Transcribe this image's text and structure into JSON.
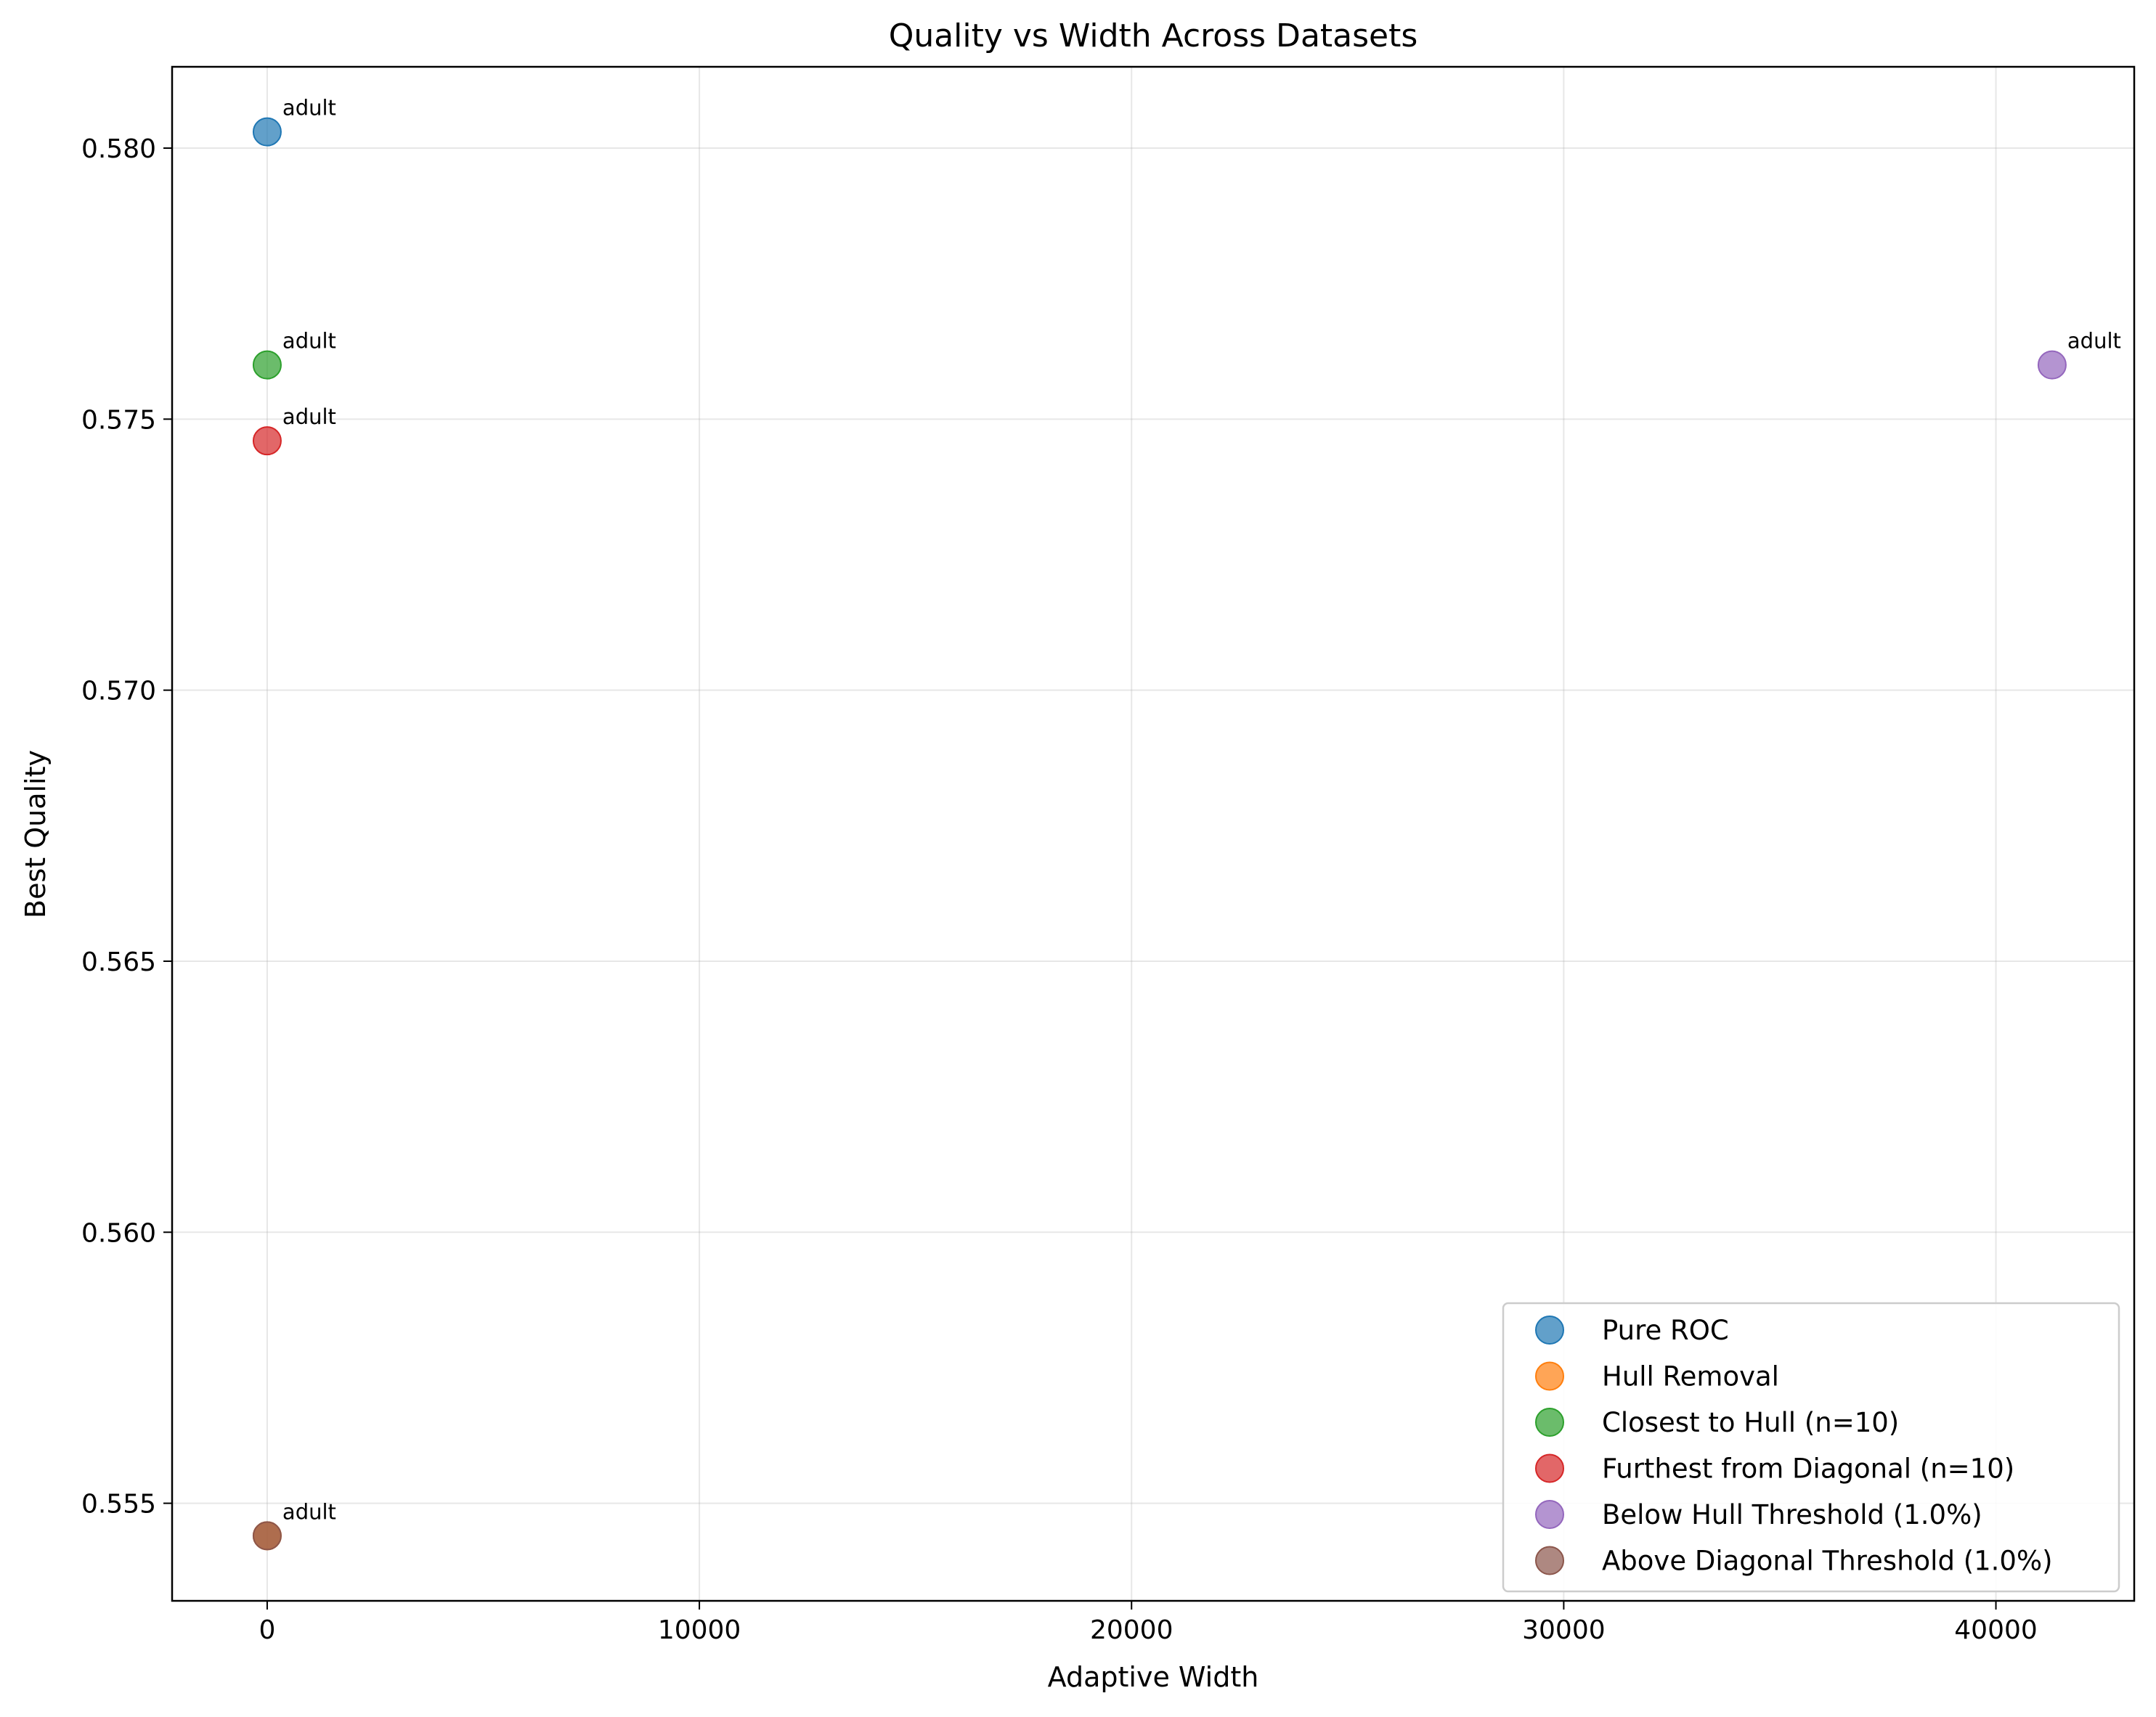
{
  "chart_data": {
    "type": "scatter",
    "title": "Quality vs Width Across Datasets",
    "xlabel": "Adaptive Width",
    "ylabel": "Best Quality",
    "xlim": [
      -2200,
      43200
    ],
    "ylim": [
      0.5532,
      0.5815
    ],
    "xticks": [
      0,
      10000,
      20000,
      30000,
      40000
    ],
    "xtick_labels": [
      "0",
      "10000",
      "20000",
      "30000",
      "40000"
    ],
    "yticks": [
      0.555,
      0.56,
      0.565,
      0.57,
      0.575,
      0.58
    ],
    "ytick_labels": [
      "0.555",
      "0.560",
      "0.565",
      "0.570",
      "0.575",
      "0.580"
    ],
    "grid": true,
    "legend_position": "lower right",
    "series": [
      {
        "name": "Pure ROC",
        "color": "#1f77b4",
        "points": [
          {
            "x": 0,
            "y": 0.5803,
            "label": "adult"
          }
        ]
      },
      {
        "name": "Hull Removal",
        "color": "#ff7f0e",
        "points": [
          {
            "x": 0,
            "y": 0.5544,
            "label": ""
          }
        ]
      },
      {
        "name": "Closest to Hull (n=10)",
        "color": "#2ca02c",
        "points": [
          {
            "x": 0,
            "y": 0.576,
            "label": "adult"
          }
        ]
      },
      {
        "name": "Furthest from Diagonal (n=10)",
        "color": "#d62728",
        "points": [
          {
            "x": 0,
            "y": 0.5746,
            "label": "adult"
          }
        ]
      },
      {
        "name": "Below Hull Threshold (1.0%)",
        "color": "#9467bd",
        "points": [
          {
            "x": 41300,
            "y": 0.576,
            "label": "adult"
          }
        ]
      },
      {
        "name": "Above Diagonal Threshold (1.0%)",
        "color": "#8c564b",
        "points": [
          {
            "x": 0,
            "y": 0.5544,
            "label": "adult"
          }
        ]
      }
    ]
  }
}
